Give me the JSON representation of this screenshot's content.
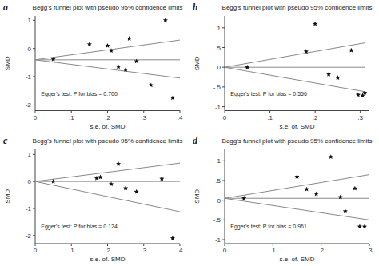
{
  "chart_data": [
    {
      "type": "scatter",
      "title": "Begg's funnel plot with pseudo 95% confidence limits",
      "x_label": "s.e. of. SMD",
      "y_label": "SMD",
      "panel_label": "a",
      "annotation": "Egger's test: P for bias = 0.700",
      "xlim": [
        0,
        0.4
      ],
      "ylim": [
        -2.2,
        1.15
      ],
      "xticks": [
        0,
        {
          "value": 0.1,
          "label": ".1"
        },
        {
          "value": 0.2,
          "label": ".2"
        },
        {
          "value": 0.3,
          "label": ".3"
        },
        {
          "value": 0.4,
          "label": ".4"
        }
      ],
      "yticks": [
        -2,
        -1,
        0,
        1
      ],
      "grid": false,
      "series": [
        {
          "type": "line",
          "color": "#888888",
          "x": [
            0,
            0.4
          ],
          "values": [
            -0.4,
            0.3
          ]
        },
        {
          "type": "line",
          "color": "#888888",
          "x": [
            0,
            0.4
          ],
          "values": [
            -0.4,
            -1.05
          ]
        },
        {
          "type": "line",
          "color": "#888888",
          "x": [
            0,
            0.4
          ],
          "values": [
            -0.4,
            -0.4
          ]
        },
        {
          "type": "scatter",
          "color": "#111111",
          "marker": "star",
          "x": [
            0.05,
            0.15,
            0.2,
            0.21,
            0.23,
            0.25,
            0.26,
            0.28,
            0.32,
            0.36,
            0.38
          ],
          "values": [
            -0.38,
            0.15,
            0.1,
            -0.08,
            -0.65,
            -0.75,
            0.35,
            -0.45,
            -1.3,
            1.0,
            -1.75
          ]
        }
      ]
    },
    {
      "type": "scatter",
      "title": "Begg's funnel plot with pseudo 95% confidence limits",
      "x_label": "s.e. of. SMD",
      "y_label": "SMD",
      "panel_label": "b",
      "annotation": "Egger's test: P for bias = 0.556",
      "xlim": [
        0,
        0.32
      ],
      "ylim": [
        -1.1,
        1.3
      ],
      "xticks": [
        0,
        {
          "value": 0.1,
          "label": ".1"
        },
        {
          "value": 0.2,
          "label": ".2"
        },
        {
          "value": 0.3,
          "label": ".3"
        }
      ],
      "yticks": [
        -1,
        {
          "value": -0.5,
          "label": "-.5"
        },
        0,
        {
          "value": 0.5,
          "label": ".5"
        },
        1
      ],
      "grid": false,
      "series": [
        {
          "type": "line",
          "color": "#888888",
          "x": [
            0,
            0.31
          ],
          "values": [
            0.0,
            0.62
          ]
        },
        {
          "type": "line",
          "color": "#888888",
          "x": [
            0,
            0.31
          ],
          "values": [
            0.0,
            -0.62
          ]
        },
        {
          "type": "line",
          "color": "#888888",
          "x": [
            0,
            0.31
          ],
          "values": [
            0.0,
            0.0
          ]
        },
        {
          "type": "scatter",
          "color": "#111111",
          "marker": "star",
          "x": [
            0.05,
            0.18,
            0.2,
            0.23,
            0.25,
            0.28,
            0.295,
            0.305,
            0.31
          ],
          "values": [
            0.0,
            0.4,
            1.1,
            -0.18,
            -0.27,
            0.43,
            -0.7,
            -0.72,
            -0.65
          ]
        }
      ]
    },
    {
      "type": "scatter",
      "title": "Begg's funnel plot with pseudo 95% confidence limits",
      "x_label": "s.e. of. SMD",
      "y_label": "SMD",
      "panel_label": "c",
      "annotation": "Egger's test: P for bias = 0.124",
      "xlim": [
        0,
        0.4
      ],
      "ylim": [
        -2.3,
        1.2
      ],
      "xticks": [
        0,
        {
          "value": 0.1,
          "label": ".1"
        },
        {
          "value": 0.2,
          "label": ".2"
        },
        {
          "value": 0.3,
          "label": ".3"
        },
        {
          "value": 0.4,
          "label": ".4"
        }
      ],
      "yticks": [
        -2,
        -1,
        0,
        1
      ],
      "grid": false,
      "series": [
        {
          "type": "line",
          "color": "#888888",
          "x": [
            0,
            0.4
          ],
          "values": [
            0.0,
            0.68
          ]
        },
        {
          "type": "line",
          "color": "#888888",
          "x": [
            0,
            0.4
          ],
          "values": [
            0.0,
            -1.12
          ]
        },
        {
          "type": "line",
          "color": "#888888",
          "x": [
            0,
            0.4
          ],
          "values": [
            0.0,
            0.0
          ]
        },
        {
          "type": "scatter",
          "color": "#111111",
          "marker": "star",
          "x": [
            0.05,
            0.17,
            0.18,
            0.21,
            0.23,
            0.25,
            0.28,
            0.35,
            0.38
          ],
          "values": [
            0.0,
            0.12,
            0.16,
            -0.1,
            0.65,
            -0.25,
            -0.38,
            0.1,
            -2.1
          ]
        }
      ]
    },
    {
      "type": "scatter",
      "title": "Begg's funnel plot with pseudo 95% confidence limits",
      "x_label": "s.e. of. SMD",
      "y_label": "SMD",
      "panel_label": "d",
      "annotation": "Egger's test: P for bias = 0.961",
      "xlim": [
        0,
        0.3
      ],
      "ylim": [
        -1.1,
        1.3
      ],
      "xticks": [
        0,
        {
          "value": 0.1,
          "label": ".1"
        },
        {
          "value": 0.2,
          "label": ".2"
        },
        {
          "value": 0.3,
          "label": ".3"
        }
      ],
      "yticks": [
        -1,
        {
          "value": -0.5,
          "label": "-.5"
        },
        0,
        {
          "value": 0.5,
          "label": ".5"
        },
        1
      ],
      "grid": false,
      "series": [
        {
          "type": "line",
          "color": "#888888",
          "x": [
            0,
            0.3
          ],
          "values": [
            0.05,
            0.65
          ]
        },
        {
          "type": "line",
          "color": "#888888",
          "x": [
            0,
            0.3
          ],
          "values": [
            0.05,
            -0.5
          ]
        },
        {
          "type": "line",
          "color": "#888888",
          "x": [
            0,
            0.3
          ],
          "values": [
            0.05,
            0.05
          ]
        },
        {
          "type": "scatter",
          "color": "#111111",
          "marker": "star",
          "x": [
            0.04,
            0.15,
            0.17,
            0.19,
            0.22,
            0.24,
            0.25,
            0.27,
            0.28,
            0.29
          ],
          "values": [
            0.05,
            0.6,
            0.28,
            0.16,
            1.1,
            0.08,
            -0.28,
            0.3,
            -0.67,
            -0.67
          ]
        }
      ]
    }
  ]
}
